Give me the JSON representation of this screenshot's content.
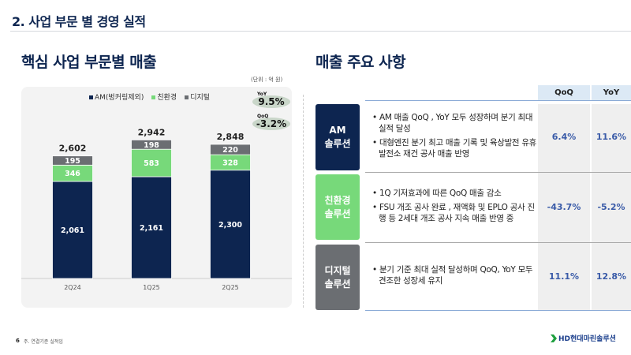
{
  "header": {
    "title": "2. 사업 부문 별 경영 실적"
  },
  "left": {
    "heading": "핵심 사업 부문별 매출",
    "unit": "(단위 : 억 원)",
    "yoy_label": "YoY",
    "yoy_value": "9.5%",
    "qoq_label": "QoQ",
    "qoq_value": "-3.2%"
  },
  "chart_data": {
    "type": "bar",
    "stacked": true,
    "categories": [
      "2Q24",
      "1Q25",
      "2Q25"
    ],
    "series": [
      {
        "name": "AM(벙커링제외)",
        "color": "#0d2550",
        "values": [
          2061,
          2161,
          2300
        ],
        "labels": [
          "2,061",
          "2,161",
          "2,300"
        ]
      },
      {
        "name": "친환경",
        "color": "#77d97a",
        "values": [
          346,
          583,
          328
        ],
        "labels": [
          "346",
          "583",
          "328"
        ]
      },
      {
        "name": "디지털",
        "color": "#6b6e72",
        "values": [
          195,
          198,
          220
        ],
        "labels": [
          "195",
          "198",
          "220"
        ]
      }
    ],
    "totals": [
      "2,602",
      "2,942",
      "2,848"
    ],
    "legend": "top-center",
    "ylim": [
      0,
      3400
    ]
  },
  "right": {
    "heading": "매출 주요 사항",
    "col_qoq": "QoQ",
    "col_yoy": "YoY",
    "rows": [
      {
        "label1": "AM",
        "label2": "솔루션",
        "color": "#0d2550",
        "bullets": [
          "AM 매출 QoQ , YoY 모두 성장하며 분기 최대 실적 달성",
          "대형엔진 분기 최고 매출 기록 및 육상발전 유휴 발전소 재건 공사 매출 반영"
        ],
        "qoq": "6.4%",
        "yoy": "11.6%"
      },
      {
        "label1": "친환경",
        "label2": "솔루션",
        "color": "#77d97a",
        "bullets": [
          "1Q 기저효과에 따른 QoQ 매출 감소",
          "FSU 개조 공사 완료 , 재액화 및 EPLO 공사 진행 등 2세대 개조 공사 지속 매출 반영 중"
        ],
        "qoq": "-43.7%",
        "yoy": "-5.2%"
      },
      {
        "label1": "디지털",
        "label2": "솔루션",
        "color": "#6b6e72",
        "bullets": [
          "분기 기준 최대 실적 달성하며 QoQ, YoY 모두 견조한 성장세 유지"
        ],
        "qoq": "11.1%",
        "yoy": "12.8%"
      }
    ]
  },
  "footer": {
    "page": "6",
    "note": "주. 연결기준 실적임",
    "logo": "HD현대마린솔루션"
  }
}
